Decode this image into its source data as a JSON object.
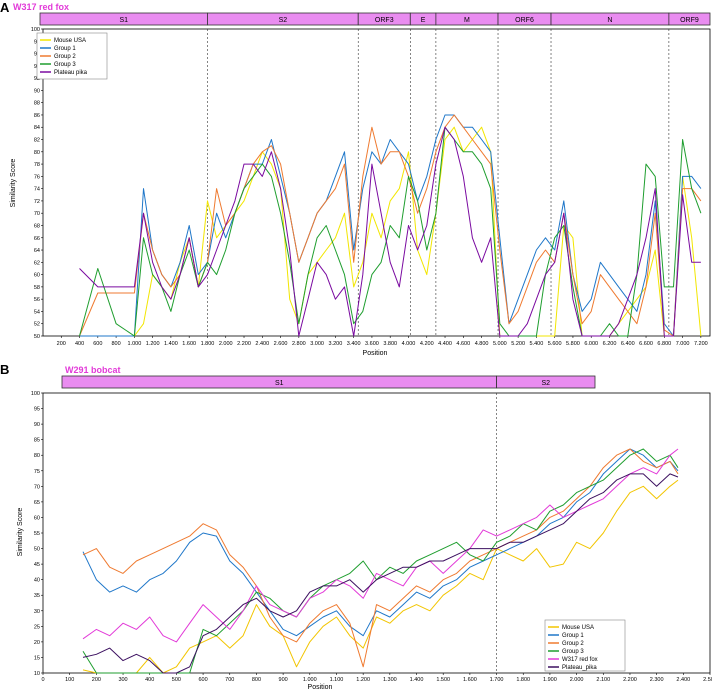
{
  "panels": [
    {
      "letter": "A",
      "title": "W317 red fox",
      "regions": [
        "S1",
        "S2",
        "ORF3",
        "E",
        "M",
        "ORF6",
        "N",
        "ORF9"
      ],
      "legend": [
        "Mouse USA",
        "Group 1",
        "Group 2",
        "Group 3",
        "Plateau pika"
      ],
      "ylabel": "Similarity Score",
      "xlabel": "Position",
      "xticks": [
        "200",
        "400",
        "600",
        "800",
        "1.000",
        "1.200",
        "1.400",
        "1.600",
        "1.800",
        "2.000",
        "2.200",
        "2.400",
        "2.600",
        "2.800",
        "3.000",
        "3.200",
        "3.400",
        "3.600",
        "3.800",
        "4.000",
        "4.200",
        "4.400",
        "4.600",
        "4.800",
        "5.000",
        "5.200",
        "5.400",
        "5.600",
        "5.800",
        "6.000",
        "6.200",
        "6.400",
        "6.600",
        "6.800",
        "7.000",
        "7.200"
      ],
      "yticks": [
        "50",
        "52",
        "54",
        "56",
        "58",
        "60",
        "62",
        "64",
        "66",
        "68",
        "70",
        "72",
        "74",
        "76",
        "78",
        "80",
        "82",
        "84",
        "86",
        "88",
        "90",
        "92",
        "94",
        "96",
        "98",
        "100"
      ]
    },
    {
      "letter": "B",
      "title": "W291 bobcat",
      "regions": [
        "S1",
        "S2"
      ],
      "legend": [
        "Mouse USA",
        "Group 1",
        "Group 2",
        "Group 3",
        "W317 red fox",
        "Plateau_pika"
      ],
      "ylabel": "Similarity Score",
      "xlabel": "Position",
      "xticks": [
        "0",
        "100",
        "200",
        "300",
        "400",
        "500",
        "600",
        "700",
        "800",
        "900",
        "1.000",
        "1.100",
        "1.200",
        "1.300",
        "1.400",
        "1.500",
        "1.600",
        "1.700",
        "1.800",
        "1.900",
        "2.000",
        "2.100",
        "2.200",
        "2.300",
        "2.400",
        "2.500"
      ],
      "yticks": [
        "10",
        "15",
        "20",
        "25",
        "30",
        "35",
        "40",
        "45",
        "50",
        "55",
        "60",
        "65",
        "70",
        "75",
        "80",
        "85",
        "90",
        "95",
        "100"
      ]
    }
  ],
  "chart_data": [
    {
      "type": "line",
      "title": "W317 red fox",
      "xlabel": "Position",
      "ylabel": "Similarity Score",
      "xlim": [
        0,
        7300
      ],
      "ylim": [
        50,
        100
      ],
      "grid": false,
      "legend_position": "top-left",
      "regions": [
        {
          "name": "S1",
          "start": 0,
          "end": 1800
        },
        {
          "name": "S2",
          "start": 1800,
          "end": 3450
        },
        {
          "name": "ORF3",
          "start": 3450,
          "end": 4020
        },
        {
          "name": "E",
          "start": 4020,
          "end": 4300
        },
        {
          "name": "M",
          "start": 4300,
          "end": 4980
        },
        {
          "name": "ORF6",
          "start": 4980,
          "end": 5560
        },
        {
          "name": "N",
          "start": 5560,
          "end": 6850
        },
        {
          "name": "ORF9",
          "start": 6850,
          "end": 7300
        }
      ],
      "x": [
        400,
        600,
        800,
        1000,
        1100,
        1200,
        1300,
        1400,
        1500,
        1600,
        1700,
        1800,
        1900,
        2000,
        2100,
        2200,
        2300,
        2400,
        2500,
        2600,
        2700,
        2800,
        2900,
        3000,
        3100,
        3200,
        3300,
        3400,
        3500,
        3600,
        3700,
        3800,
        3900,
        4000,
        4100,
        4200,
        4300,
        4400,
        4500,
        4600,
        4700,
        4800,
        4900,
        5000,
        5100,
        5200,
        5300,
        5400,
        5500,
        5600,
        5700,
        5800,
        5900,
        6000,
        6100,
        6200,
        6300,
        6400,
        6500,
        6600,
        6700,
        6800,
        6900,
        7000,
        7100,
        7200
      ],
      "series": [
        {
          "name": "Mouse USA",
          "color": "#f2e600",
          "values": [
            50,
            50,
            50,
            50,
            52,
            60,
            58,
            56,
            62,
            66,
            58,
            72,
            66,
            68,
            70,
            72,
            76,
            80,
            78,
            74,
            56,
            52,
            60,
            62,
            64,
            66,
            70,
            58,
            62,
            70,
            66,
            72,
            74,
            80,
            64,
            60,
            70,
            82,
            84,
            80,
            82,
            84,
            80,
            50,
            50,
            50,
            50,
            50,
            50,
            50,
            68,
            66,
            50,
            50,
            50,
            50,
            52,
            54,
            56,
            58,
            64,
            50,
            50,
            76,
            66,
            50
          ]
        },
        {
          "name": "Group 1",
          "color": "#1f77c9",
          "values": [
            50,
            50,
            50,
            50,
            74,
            64,
            60,
            58,
            62,
            68,
            60,
            62,
            70,
            66,
            70,
            74,
            78,
            78,
            82,
            76,
            70,
            62,
            66,
            70,
            72,
            76,
            80,
            64,
            74,
            80,
            78,
            82,
            80,
            78,
            72,
            76,
            82,
            86,
            86,
            84,
            84,
            82,
            80,
            66,
            52,
            56,
            60,
            64,
            66,
            64,
            72,
            60,
            54,
            56,
            62,
            60,
            58,
            56,
            54,
            60,
            72,
            52,
            50,
            76,
            76,
            74
          ]
        },
        {
          "name": "Group 2",
          "color": "#ef7a30",
          "values": [
            50,
            57,
            57,
            57,
            70,
            64,
            60,
            58,
            60,
            66,
            58,
            62,
            74,
            68,
            70,
            74,
            78,
            80,
            81,
            78,
            70,
            62,
            66,
            70,
            72,
            74,
            78,
            62,
            76,
            84,
            78,
            80,
            80,
            76,
            70,
            74,
            80,
            84,
            86,
            84,
            82,
            80,
            78,
            64,
            52,
            54,
            58,
            62,
            64,
            62,
            70,
            60,
            52,
            54,
            60,
            58,
            56,
            54,
            52,
            58,
            70,
            51,
            50,
            74,
            74,
            72
          ]
        },
        {
          "name": "Group 3",
          "color": "#1f9e2f",
          "values": [
            50,
            61,
            52,
            50,
            66,
            60,
            58,
            54,
            60,
            64,
            58,
            62,
            60,
            64,
            70,
            74,
            76,
            78,
            76,
            70,
            62,
            52,
            60,
            66,
            68,
            64,
            60,
            52,
            54,
            60,
            62,
            68,
            66,
            76,
            72,
            64,
            70,
            84,
            82,
            80,
            80,
            78,
            74,
            52,
            50,
            50,
            50,
            50,
            60,
            66,
            68,
            58,
            50,
            50,
            50,
            52,
            50,
            50,
            60,
            78,
            76,
            58,
            58,
            82,
            74,
            70
          ]
        },
        {
          "name": "Plateau pika",
          "color": "#7a0aa0",
          "values": [
            61,
            58,
            58,
            58,
            70,
            62,
            58,
            56,
            60,
            66,
            58,
            60,
            64,
            68,
            72,
            78,
            78,
            76,
            80,
            74,
            64,
            50,
            56,
            62,
            60,
            56,
            58,
            50,
            60,
            78,
            70,
            62,
            58,
            68,
            64,
            68,
            78,
            84,
            82,
            76,
            66,
            62,
            66,
            50,
            50,
            50,
            52,
            56,
            60,
            62,
            70,
            56,
            50,
            50,
            50,
            50,
            52,
            56,
            60,
            66,
            74,
            50,
            50,
            73,
            62,
            62
          ]
        }
      ]
    },
    {
      "type": "line",
      "title": "W291 bobcat",
      "xlabel": "Position",
      "ylabel": "Similarity Score",
      "xlim": [
        0,
        2500
      ],
      "ylim": [
        10,
        100
      ],
      "grid": false,
      "legend_position": "bottom-right",
      "regions": [
        {
          "name": "S1",
          "start": 0,
          "end": 1700
        },
        {
          "name": "S2",
          "start": 1700,
          "end": 2500
        }
      ],
      "x": [
        150,
        200,
        250,
        300,
        350,
        400,
        450,
        500,
        550,
        600,
        650,
        700,
        750,
        800,
        850,
        900,
        950,
        1000,
        1050,
        1100,
        1150,
        1200,
        1250,
        1300,
        1350,
        1400,
        1450,
        1500,
        1550,
        1600,
        1650,
        1700,
        1750,
        1800,
        1850,
        1900,
        1950,
        2000,
        2050,
        2100,
        2150,
        2200,
        2250,
        2300,
        2350,
        2380
      ],
      "series": [
        {
          "name": "Mouse USA",
          "color": "#f2c500",
          "values": [
            11,
            10,
            10,
            10,
            10,
            15,
            10,
            12,
            18,
            20,
            22,
            18,
            22,
            32,
            25,
            22,
            12,
            20,
            25,
            28,
            22,
            18,
            28,
            26,
            30,
            32,
            30,
            35,
            38,
            42,
            40,
            50,
            48,
            46,
            50,
            44,
            45,
            52,
            50,
            55,
            62,
            68,
            70,
            66,
            70,
            72
          ]
        },
        {
          "name": "Group 1",
          "color": "#1f77c9",
          "values": [
            49,
            40,
            36,
            38,
            36,
            40,
            42,
            46,
            52,
            55,
            54,
            46,
            42,
            36,
            30,
            24,
            22,
            25,
            28,
            30,
            25,
            22,
            30,
            28,
            32,
            36,
            34,
            38,
            40,
            44,
            46,
            48,
            50,
            52,
            54,
            58,
            60,
            65,
            68,
            74,
            78,
            82,
            80,
            76,
            78,
            75
          ]
        },
        {
          "name": "Group 2",
          "color": "#ef7a30",
          "values": [
            48,
            50,
            44,
            42,
            46,
            48,
            50,
            52,
            54,
            58,
            56,
            48,
            44,
            38,
            28,
            22,
            20,
            26,
            30,
            32,
            26,
            12,
            32,
            30,
            34,
            38,
            36,
            40,
            42,
            46,
            48,
            50,
            52,
            54,
            56,
            60,
            62,
            66,
            70,
            76,
            80,
            82,
            78,
            76,
            78,
            74
          ]
        },
        {
          "name": "Group 3",
          "color": "#1f9e2f",
          "values": [
            17,
            10,
            10,
            10,
            10,
            10,
            10,
            10,
            10,
            24,
            22,
            26,
            30,
            36,
            34,
            30,
            28,
            34,
            38,
            40,
            42,
            46,
            40,
            44,
            42,
            46,
            48,
            50,
            52,
            48,
            46,
            52,
            54,
            58,
            56,
            62,
            64,
            68,
            70,
            72,
            76,
            80,
            82,
            78,
            80,
            76
          ]
        },
        {
          "name": "W317 red fox",
          "color": "#e23ad8",
          "values": [
            21,
            24,
            22,
            26,
            24,
            28,
            22,
            20,
            26,
            32,
            28,
            24,
            30,
            38,
            32,
            30,
            28,
            34,
            36,
            40,
            38,
            34,
            42,
            40,
            38,
            44,
            46,
            42,
            46,
            50,
            56,
            54,
            56,
            58,
            60,
            64,
            60,
            62,
            64,
            66,
            70,
            74,
            76,
            74,
            80,
            82
          ]
        },
        {
          "name": "Plateau_pika",
          "color": "#3c1060",
          "values": [
            15,
            16,
            18,
            14,
            16,
            14,
            10,
            10,
            12,
            22,
            24,
            28,
            32,
            34,
            30,
            28,
            30,
            36,
            38,
            38,
            40,
            36,
            40,
            42,
            44,
            44,
            46,
            46,
            48,
            50,
            50,
            50,
            52,
            52,
            54,
            56,
            58,
            62,
            66,
            68,
            72,
            74,
            74,
            70,
            74,
            73
          ]
        }
      ]
    }
  ]
}
